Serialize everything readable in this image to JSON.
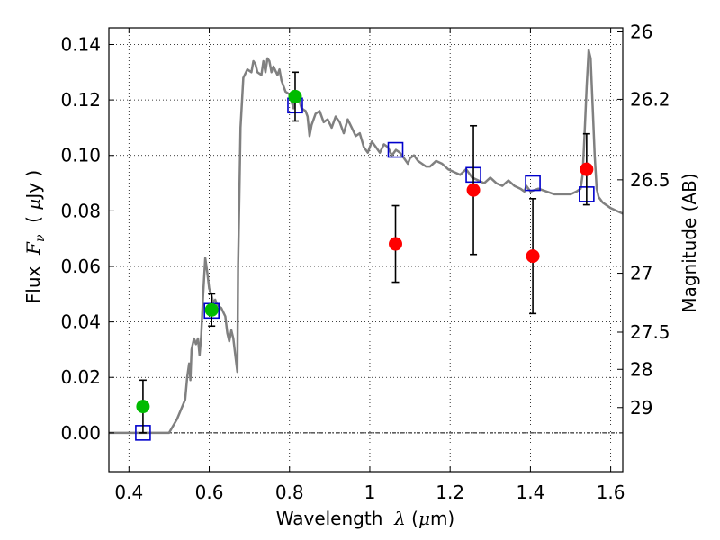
{
  "chart_data": {
    "type": "scatter",
    "xlabel": {
      "pre": "Wavelength  ",
      "sym": "λ",
      "post": " (",
      "mu": "μ",
      "unit": "m)"
    },
    "ylabel": {
      "pre": "Flux  ",
      "sym": "F",
      "sub": "ν",
      "post": "  ( ",
      "mu": "μ",
      "unit": "Jy )"
    },
    "y2label": "Magnitude (AB)",
    "xlim": [
      0.35,
      1.63
    ],
    "ylim": [
      -0.014,
      0.146
    ],
    "xticks": [
      {
        "v": 0.4,
        "label": "0.4"
      },
      {
        "v": 0.6,
        "label": "0.6"
      },
      {
        "v": 0.8,
        "label": "0.8"
      },
      {
        "v": 1.0,
        "label": "1"
      },
      {
        "v": 1.2,
        "label": "1.2"
      },
      {
        "v": 1.4,
        "label": "1.4"
      },
      {
        "v": 1.6,
        "label": "1.6"
      }
    ],
    "yticks": [
      {
        "v": 0.0,
        "label": "0.00"
      },
      {
        "v": 0.02,
        "label": "0.02"
      },
      {
        "v": 0.04,
        "label": "0.04"
      },
      {
        "v": 0.06,
        "label": "0.06"
      },
      {
        "v": 0.08,
        "label": "0.08"
      },
      {
        "v": 0.1,
        "label": "0.10"
      },
      {
        "v": 0.12,
        "label": "0.12"
      },
      {
        "v": 0.14,
        "label": "0.14"
      }
    ],
    "y2ticks": [
      {
        "mag": 26,
        "label": "26"
      },
      {
        "mag": 26.2,
        "label": "26.2"
      },
      {
        "mag": 26.5,
        "label": "26.5"
      },
      {
        "mag": 27,
        "label": "27"
      },
      {
        "mag": 27.5,
        "label": "27.5"
      },
      {
        "mag": 28,
        "label": "28"
      },
      {
        "mag": 29,
        "label": "29"
      }
    ],
    "grid": true,
    "colors": {
      "model": "#808080",
      "green": "#00bb00",
      "red": "#ff0000",
      "square": "#0000cc",
      "err": "#000000"
    },
    "model_curve": [
      [
        0.35,
        0.0
      ],
      [
        0.5,
        0.0
      ],
      [
        0.52,
        0.005
      ],
      [
        0.54,
        0.012
      ],
      [
        0.545,
        0.02
      ],
      [
        0.55,
        0.025
      ],
      [
        0.553,
        0.019
      ],
      [
        0.556,
        0.03
      ],
      [
        0.562,
        0.034
      ],
      [
        0.567,
        0.032
      ],
      [
        0.572,
        0.034
      ],
      [
        0.576,
        0.028
      ],
      [
        0.58,
        0.035
      ],
      [
        0.585,
        0.05
      ],
      [
        0.59,
        0.063
      ],
      [
        0.595,
        0.058
      ],
      [
        0.6,
        0.052
      ],
      [
        0.605,
        0.05
      ],
      [
        0.61,
        0.047
      ],
      [
        0.615,
        0.048
      ],
      [
        0.62,
        0.046
      ],
      [
        0.63,
        0.045
      ],
      [
        0.64,
        0.042
      ],
      [
        0.645,
        0.036
      ],
      [
        0.65,
        0.033
      ],
      [
        0.655,
        0.037
      ],
      [
        0.66,
        0.034
      ],
      [
        0.665,
        0.028
      ],
      [
        0.67,
        0.022
      ],
      [
        0.672,
        0.06
      ],
      [
        0.675,
        0.085
      ],
      [
        0.678,
        0.11
      ],
      [
        0.685,
        0.128
      ],
      [
        0.695,
        0.131
      ],
      [
        0.705,
        0.13
      ],
      [
        0.71,
        0.134
      ],
      [
        0.715,
        0.133
      ],
      [
        0.72,
        0.13
      ],
      [
        0.73,
        0.129
      ],
      [
        0.735,
        0.134
      ],
      [
        0.74,
        0.13
      ],
      [
        0.745,
        0.135
      ],
      [
        0.75,
        0.134
      ],
      [
        0.755,
        0.13
      ],
      [
        0.76,
        0.132
      ],
      [
        0.77,
        0.129
      ],
      [
        0.775,
        0.131
      ],
      [
        0.78,
        0.127
      ],
      [
        0.79,
        0.123
      ],
      [
        0.8,
        0.122
      ],
      [
        0.81,
        0.117
      ],
      [
        0.815,
        0.12
      ],
      [
        0.82,
        0.122
      ],
      [
        0.83,
        0.117
      ],
      [
        0.84,
        0.116
      ],
      [
        0.845,
        0.114
      ],
      [
        0.85,
        0.107
      ],
      [
        0.855,
        0.111
      ],
      [
        0.865,
        0.115
      ],
      [
        0.875,
        0.116
      ],
      [
        0.885,
        0.112
      ],
      [
        0.895,
        0.113
      ],
      [
        0.905,
        0.11
      ],
      [
        0.915,
        0.114
      ],
      [
        0.925,
        0.112
      ],
      [
        0.935,
        0.108
      ],
      [
        0.945,
        0.113
      ],
      [
        0.955,
        0.11
      ],
      [
        0.965,
        0.107
      ],
      [
        0.975,
        0.108
      ],
      [
        0.985,
        0.103
      ],
      [
        0.995,
        0.101
      ],
      [
        1.005,
        0.105
      ],
      [
        1.015,
        0.103
      ],
      [
        1.025,
        0.101
      ],
      [
        1.035,
        0.104
      ],
      [
        1.045,
        0.103
      ],
      [
        1.055,
        0.1
      ],
      [
        1.065,
        0.102
      ],
      [
        1.075,
        0.101
      ],
      [
        1.085,
        0.099
      ],
      [
        1.095,
        0.097
      ],
      [
        1.1,
        0.099
      ],
      [
        1.11,
        0.1
      ],
      [
        1.12,
        0.098
      ],
      [
        1.13,
        0.097
      ],
      [
        1.14,
        0.096
      ],
      [
        1.15,
        0.096
      ],
      [
        1.165,
        0.098
      ],
      [
        1.18,
        0.097
      ],
      [
        1.195,
        0.095
      ],
      [
        1.21,
        0.094
      ],
      [
        1.225,
        0.093
      ],
      [
        1.24,
        0.095
      ],
      [
        1.255,
        0.092
      ],
      [
        1.27,
        0.091
      ],
      [
        1.285,
        0.09
      ],
      [
        1.3,
        0.092
      ],
      [
        1.315,
        0.09
      ],
      [
        1.33,
        0.089
      ],
      [
        1.345,
        0.091
      ],
      [
        1.36,
        0.089
      ],
      [
        1.375,
        0.088
      ],
      [
        1.385,
        0.087
      ],
      [
        1.39,
        0.089
      ],
      [
        1.4,
        0.087
      ],
      [
        1.42,
        0.088
      ],
      [
        1.44,
        0.087
      ],
      [
        1.46,
        0.086
      ],
      [
        1.48,
        0.086
      ],
      [
        1.5,
        0.086
      ],
      [
        1.515,
        0.087
      ],
      [
        1.525,
        0.088
      ],
      [
        1.53,
        0.093
      ],
      [
        1.535,
        0.108
      ],
      [
        1.54,
        0.125
      ],
      [
        1.545,
        0.138
      ],
      [
        1.55,
        0.135
      ],
      [
        1.555,
        0.118
      ],
      [
        1.56,
        0.1
      ],
      [
        1.565,
        0.088
      ],
      [
        1.57,
        0.085
      ],
      [
        1.58,
        0.083
      ],
      [
        1.59,
        0.082
      ],
      [
        1.6,
        0.081
      ],
      [
        1.615,
        0.08
      ],
      [
        1.63,
        0.079
      ]
    ],
    "squares": [
      {
        "x": 0.435,
        "y": 0.0
      },
      {
        "x": 0.606,
        "y": 0.044
      },
      {
        "x": 0.814,
        "y": 0.118
      },
      {
        "x": 1.064,
        "y": 0.102
      },
      {
        "x": 1.258,
        "y": 0.093
      },
      {
        "x": 1.406,
        "y": 0.09
      },
      {
        "x": 1.54,
        "y": 0.086
      }
    ],
    "green_points": [
      {
        "x": 0.435,
        "y": 0.0095,
        "err": 0.0095
      },
      {
        "x": 0.606,
        "y": 0.0443,
        "err": 0.0058
      },
      {
        "x": 0.814,
        "y": 0.1212,
        "err": 0.0088
      }
    ],
    "red_points": [
      {
        "x": 1.064,
        "y": 0.0681,
        "err": 0.0138
      },
      {
        "x": 1.258,
        "y": 0.0875,
        "err": 0.0232
      },
      {
        "x": 1.406,
        "y": 0.0637,
        "err": 0.0207
      },
      {
        "x": 1.54,
        "y": 0.095,
        "err": 0.0128
      }
    ]
  }
}
